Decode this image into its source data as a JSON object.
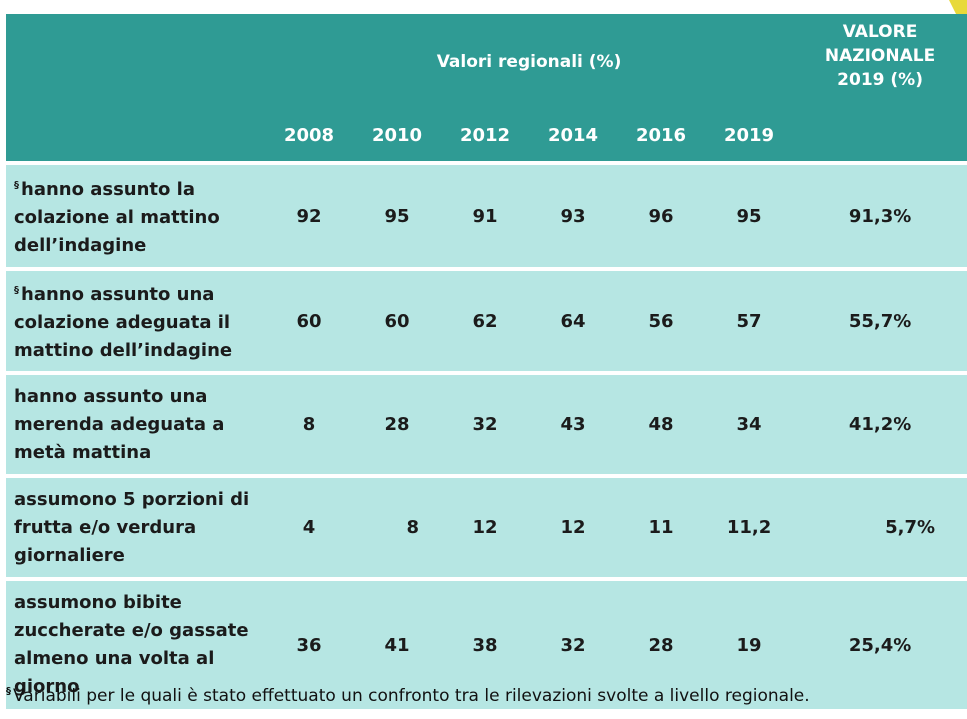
{
  "header": {
    "region_title": "Valori regionali (%)",
    "national_title_line1": "VALORE",
    "national_title_line2": "NAZIONALE",
    "national_title_line3": "2019 (%)",
    "years": [
      "2008",
      "2010",
      "2012",
      "2014",
      "2016",
      "2019"
    ]
  },
  "rows": [
    {
      "marker": "§",
      "label": "hanno assunto la colazione al mattino dell’indagine",
      "values": [
        "92",
        "95",
        "91",
        "93",
        "96",
        "95"
      ],
      "national": "91,3%"
    },
    {
      "marker": "§",
      "label": "hanno assunto una colazione adeguata il mattino dell’indagine",
      "values": [
        "60",
        "60",
        "62",
        "64",
        "56",
        "57"
      ],
      "national": "55,7%"
    },
    {
      "marker": "",
      "label": "hanno assunto una merenda adeguata a metà mattina",
      "values": [
        "8",
        "28",
        "32",
        "43",
        "48",
        "34"
      ],
      "national": "41,2%"
    },
    {
      "marker": "",
      "label": "assumono 5 porzioni di frutta e/o verdura giornaliere",
      "values": [
        "4",
        "8",
        "12",
        "12",
        "11",
        "11,2"
      ],
      "national": "5,7%"
    },
    {
      "marker": "",
      "label": "assumono bibite zuccherate e/o gassate almeno una volta al giorno",
      "values": [
        "36",
        "41",
        "38",
        "32",
        "28",
        "19"
      ],
      "national": "25,4%"
    }
  ],
  "footnote": {
    "marker": "§",
    "text": "Variabili per le quali è stato effettuato un confronto tra le rilevazioni svolte a livello regionale."
  },
  "colors": {
    "header_bg": "#2f9b94",
    "row_bg": "#b6e6e3",
    "accent": "#e8d93a"
  }
}
